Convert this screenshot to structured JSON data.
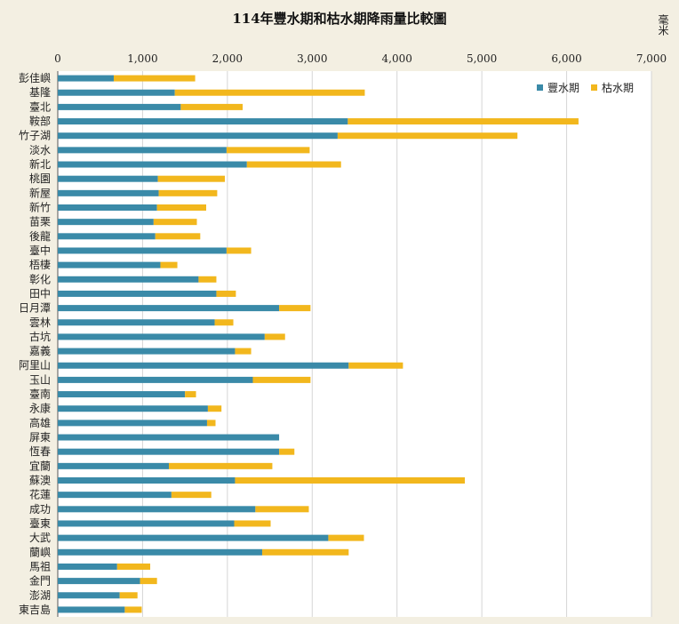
{
  "chart_data": {
    "type": "bar",
    "orientation": "horizontal",
    "stacked": true,
    "title": "114年豐水期和枯水期降雨量比較圖",
    "ylabel": "毫米",
    "xlim": [
      0,
      7000
    ],
    "xticks": [
      "0",
      "1,000",
      "2,000",
      "3,000",
      "4,000",
      "5,000",
      "6,000",
      "7,000"
    ],
    "grid": true,
    "legend_position": "top-right",
    "colors": {
      "wet": "#3a8aa8",
      "dry": "#f2b71d"
    },
    "categories": [
      "彭佳嶼",
      "基隆",
      "臺北",
      "鞍部",
      "竹子湖",
      "淡水",
      "新北",
      "桃園",
      "新屋",
      "新竹",
      "苗栗",
      "後龍",
      "臺中",
      "梧棲",
      "彰化",
      "田中",
      "日月潭",
      "雲林",
      "古坑",
      "嘉義",
      "阿里山",
      "玉山",
      "臺南",
      "永康",
      "高雄",
      "屏東",
      "恆春",
      "宜蘭",
      "蘇澳",
      "花蓮",
      "成功",
      "臺東",
      "大武",
      "蘭嶼",
      "馬祖",
      "金門",
      "澎湖",
      "東吉島"
    ],
    "series": [
      {
        "name": "豐水期",
        "values": [
          660,
          1380,
          1450,
          3420,
          3300,
          1990,
          2230,
          1180,
          1190,
          1170,
          1130,
          1150,
          1990,
          1210,
          1660,
          1870,
          2610,
          1850,
          2440,
          2090,
          3430,
          2300,
          1500,
          1770,
          1760,
          2610,
          2610,
          1310,
          2090,
          1340,
          2330,
          2080,
          3190,
          2410,
          700,
          970,
          730,
          790
        ]
      },
      {
        "name": "枯水期",
        "values": [
          960,
          2240,
          730,
          2720,
          2120,
          980,
          1110,
          790,
          690,
          580,
          510,
          530,
          290,
          200,
          210,
          230,
          370,
          220,
          240,
          190,
          640,
          680,
          130,
          160,
          100,
          0,
          180,
          1220,
          2710,
          470,
          630,
          430,
          420,
          1020,
          390,
          200,
          210,
          200
        ]
      }
    ]
  }
}
